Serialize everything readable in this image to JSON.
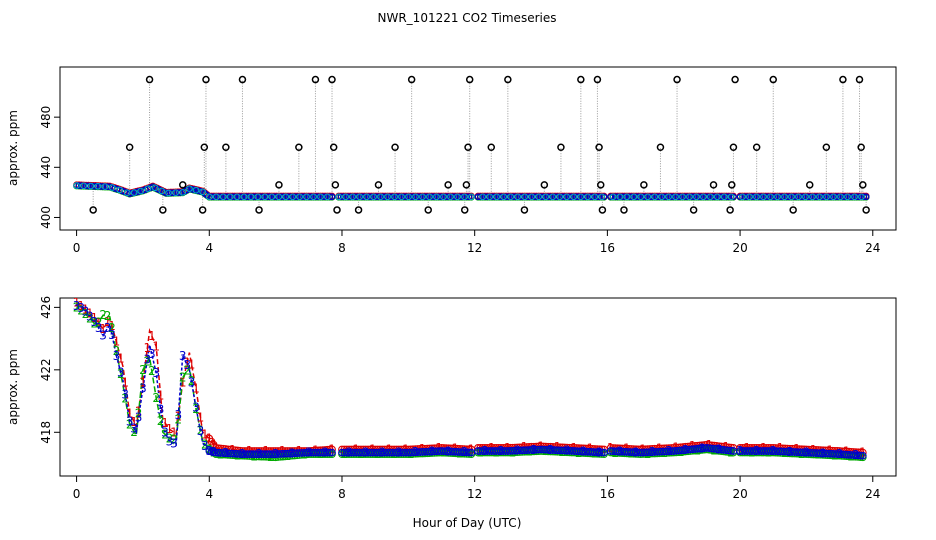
{
  "figure": {
    "title": "NWR_101221  CO2 Timeseries",
    "xlabel": "Hour of Day (UTC)"
  },
  "chart_data": [
    {
      "type": "scatter",
      "ylabel": "approx. ppm",
      "xlim": [
        -0.5,
        24.7
      ],
      "ylim": [
        390,
        520
      ],
      "x_ticks": [
        0,
        4,
        8,
        12,
        16,
        20,
        24
      ],
      "y_ticks": [
        400,
        440,
        480
      ],
      "y_tick_labels": [
        "400",
        "440",
        "480"
      ],
      "grid": false,
      "baseline": [
        [
          0.0,
          425.5
        ],
        [
          0.5,
          425.0
        ],
        [
          1.0,
          424.5
        ],
        [
          1.3,
          422.0
        ],
        [
          1.6,
          419.0
        ],
        [
          2.0,
          421.5
        ],
        [
          2.3,
          424.5
        ],
        [
          2.7,
          419.5
        ],
        [
          3.2,
          420.0
        ],
        [
          3.4,
          423.0
        ],
        [
          3.8,
          420.5
        ],
        [
          4.0,
          416.5
        ],
        [
          7.7,
          416.5
        ],
        [
          7.8,
          null
        ],
        [
          7.9,
          416.5
        ],
        [
          11.9,
          416.5
        ],
        [
          12.0,
          null
        ],
        [
          12.1,
          416.5
        ],
        [
          15.9,
          416.5
        ],
        [
          16.0,
          null
        ],
        [
          16.1,
          416.5
        ],
        [
          19.8,
          416.5
        ],
        [
          19.9,
          null
        ],
        [
          20.0,
          416.5
        ],
        [
          23.8,
          416.5
        ]
      ],
      "black_spikes": [
        [
          0.5,
          406
        ],
        [
          1.6,
          456
        ],
        [
          2.2,
          510
        ],
        [
          2.6,
          406
        ],
        [
          3.2,
          426
        ],
        [
          3.8,
          406
        ],
        [
          3.85,
          456
        ],
        [
          3.9,
          510
        ],
        [
          4.5,
          456
        ],
        [
          5.0,
          510
        ],
        [
          5.5,
          406
        ],
        [
          6.1,
          426
        ],
        [
          6.7,
          456
        ],
        [
          7.2,
          510
        ],
        [
          7.7,
          510
        ],
        [
          7.75,
          456
        ],
        [
          7.8,
          426
        ],
        [
          7.85,
          406
        ],
        [
          8.5,
          406
        ],
        [
          9.1,
          426
        ],
        [
          9.6,
          456
        ],
        [
          10.1,
          510
        ],
        [
          10.6,
          406
        ],
        [
          11.2,
          426
        ],
        [
          11.7,
          406
        ],
        [
          11.75,
          426
        ],
        [
          11.8,
          456
        ],
        [
          11.85,
          510
        ],
        [
          12.5,
          456
        ],
        [
          13.0,
          510
        ],
        [
          13.5,
          406
        ],
        [
          14.1,
          426
        ],
        [
          14.6,
          456
        ],
        [
          15.2,
          510
        ],
        [
          15.7,
          510
        ],
        [
          15.75,
          456
        ],
        [
          15.8,
          426
        ],
        [
          15.85,
          406
        ],
        [
          16.5,
          406
        ],
        [
          17.1,
          426
        ],
        [
          17.6,
          456
        ],
        [
          18.1,
          510
        ],
        [
          18.6,
          406
        ],
        [
          19.2,
          426
        ],
        [
          19.7,
          406
        ],
        [
          19.75,
          426
        ],
        [
          19.8,
          456
        ],
        [
          19.85,
          510
        ],
        [
          20.5,
          456
        ],
        [
          21.0,
          510
        ],
        [
          21.6,
          406
        ],
        [
          22.1,
          426
        ],
        [
          22.6,
          456
        ],
        [
          23.1,
          510
        ],
        [
          23.6,
          510
        ],
        [
          23.65,
          456
        ],
        [
          23.7,
          426
        ],
        [
          23.8,
          406
        ]
      ]
    },
    {
      "type": "line",
      "ylabel": "approx. ppm",
      "xlim": [
        -0.5,
        24.7
      ],
      "ylim": [
        415.2,
        426.6
      ],
      "x_ticks": [
        0,
        4,
        8,
        12,
        16,
        20,
        24
      ],
      "y_ticks": [
        418,
        422,
        426
      ],
      "y_tick_labels": [
        "418",
        "422",
        "426"
      ],
      "grid": false,
      "series": [
        {
          "marker": "1",
          "color": "#dd0000",
          "points": [
            [
              0.0,
              426.3
            ],
            [
              0.2,
              426.0
            ],
            [
              0.4,
              425.6
            ],
            [
              0.6,
              425.2
            ],
            [
              0.8,
              424.6
            ],
            [
              1.0,
              425.3
            ],
            [
              1.2,
              423.8
            ],
            [
              1.4,
              422.2
            ],
            [
              1.6,
              419.2
            ],
            [
              1.8,
              418.4
            ],
            [
              2.0,
              421.2
            ],
            [
              2.2,
              424.5
            ],
            [
              2.4,
              423.5
            ],
            [
              2.6,
              418.8
            ],
            [
              2.8,
              418.2
            ],
            [
              3.0,
              417.9
            ],
            [
              3.2,
              421.2
            ],
            [
              3.4,
              423.1
            ],
            [
              3.6,
              420.8
            ],
            [
              3.8,
              418.0
            ],
            [
              4.0,
              417.6
            ],
            [
              4.2,
              417.0
            ],
            [
              5.0,
              416.8
            ],
            [
              6.0,
              416.8
            ],
            [
              7.0,
              416.8
            ],
            [
              7.7,
              416.9
            ],
            [
              7.8,
              null
            ],
            [
              8.0,
              416.9
            ],
            [
              9.0,
              416.9
            ],
            [
              10.0,
              416.9
            ],
            [
              11.0,
              417.0
            ],
            [
              11.9,
              416.9
            ],
            [
              12.0,
              null
            ],
            [
              12.1,
              417.0
            ],
            [
              13.0,
              417.0
            ],
            [
              14.0,
              417.1
            ],
            [
              15.0,
              417.0
            ],
            [
              15.9,
              416.9
            ],
            [
              16.0,
              null
            ],
            [
              16.1,
              417.0
            ],
            [
              17.0,
              416.9
            ],
            [
              18.0,
              417.0
            ],
            [
              19.0,
              417.2
            ],
            [
              19.8,
              417.0
            ],
            [
              19.9,
              null
            ],
            [
              20.0,
              417.0
            ],
            [
              21.0,
              417.0
            ],
            [
              22.0,
              416.9
            ],
            [
              23.0,
              416.8
            ],
            [
              23.7,
              416.7
            ]
          ]
        },
        {
          "marker": "2",
          "color": "#00aa00",
          "points": [
            [
              0.0,
              426.0
            ],
            [
              0.2,
              425.7
            ],
            [
              0.4,
              425.3
            ],
            [
              0.6,
              424.8
            ],
            [
              0.8,
              425.5
            ],
            [
              1.0,
              425.4
            ],
            [
              1.2,
              423.2
            ],
            [
              1.4,
              421.0
            ],
            [
              1.6,
              418.5
            ],
            [
              1.8,
              417.8
            ],
            [
              2.0,
              422.0
            ],
            [
              2.2,
              422.8
            ],
            [
              2.4,
              420.2
            ],
            [
              2.6,
              418.0
            ],
            [
              2.8,
              417.6
            ],
            [
              3.0,
              417.5
            ],
            [
              3.2,
              421.5
            ],
            [
              3.4,
              422.2
            ],
            [
              3.6,
              419.5
            ],
            [
              3.8,
              417.4
            ],
            [
              4.0,
              416.9
            ],
            [
              4.2,
              416.6
            ],
            [
              5.0,
              416.5
            ],
            [
              6.0,
              416.4
            ],
            [
              7.0,
              416.6
            ],
            [
              7.7,
              416.6
            ],
            [
              7.8,
              null
            ],
            [
              8.0,
              416.6
            ],
            [
              9.0,
              416.6
            ],
            [
              10.0,
              416.6
            ],
            [
              11.0,
              416.7
            ],
            [
              11.9,
              416.6
            ],
            [
              12.0,
              null
            ],
            [
              12.1,
              416.7
            ],
            [
              13.0,
              416.7
            ],
            [
              14.0,
              416.8
            ],
            [
              15.0,
              416.7
            ],
            [
              15.9,
              416.6
            ],
            [
              16.0,
              null
            ],
            [
              16.1,
              416.7
            ],
            [
              17.0,
              416.6
            ],
            [
              18.0,
              416.7
            ],
            [
              19.0,
              416.9
            ],
            [
              19.8,
              416.7
            ],
            [
              19.9,
              null
            ],
            [
              20.0,
              416.7
            ],
            [
              21.0,
              416.7
            ],
            [
              22.0,
              416.6
            ],
            [
              23.0,
              416.5
            ],
            [
              23.7,
              416.4
            ]
          ]
        },
        {
          "marker": "3",
          "color": "#0000cc",
          "points": [
            [
              0.0,
              426.1
            ],
            [
              0.2,
              425.9
            ],
            [
              0.4,
              425.4
            ],
            [
              0.6,
              424.9
            ],
            [
              0.8,
              424.2
            ],
            [
              1.0,
              424.9
            ],
            [
              1.2,
              422.9
            ],
            [
              1.4,
              421.3
            ],
            [
              1.6,
              418.7
            ],
            [
              1.8,
              418.0
            ],
            [
              2.0,
              420.8
            ],
            [
              2.2,
              423.6
            ],
            [
              2.4,
              421.8
            ],
            [
              2.6,
              418.3
            ],
            [
              2.8,
              417.4
            ],
            [
              3.0,
              417.2
            ],
            [
              3.2,
              422.9
            ],
            [
              3.4,
              422.0
            ],
            [
              3.6,
              419.6
            ],
            [
              3.8,
              417.3
            ],
            [
              4.0,
              416.8
            ],
            [
              4.2,
              416.7
            ],
            [
              5.0,
              416.6
            ],
            [
              6.0,
              416.6
            ],
            [
              7.0,
              416.7
            ],
            [
              7.7,
              416.7
            ],
            [
              7.8,
              null
            ],
            [
              8.0,
              416.7
            ],
            [
              9.0,
              416.7
            ],
            [
              10.0,
              416.7
            ],
            [
              11.0,
              416.8
            ],
            [
              11.9,
              416.7
            ],
            [
              12.0,
              null
            ],
            [
              12.1,
              416.8
            ],
            [
              13.0,
              416.8
            ],
            [
              14.0,
              416.9
            ],
            [
              15.0,
              416.8
            ],
            [
              15.9,
              416.7
            ],
            [
              16.0,
              null
            ],
            [
              16.1,
              416.8
            ],
            [
              17.0,
              416.7
            ],
            [
              18.0,
              416.8
            ],
            [
              19.0,
              417.0
            ],
            [
              19.8,
              416.8
            ],
            [
              19.9,
              null
            ],
            [
              20.0,
              416.8
            ],
            [
              21.0,
              416.8
            ],
            [
              22.0,
              416.7
            ],
            [
              23.0,
              416.6
            ],
            [
              23.7,
              416.5
            ]
          ]
        }
      ]
    }
  ]
}
